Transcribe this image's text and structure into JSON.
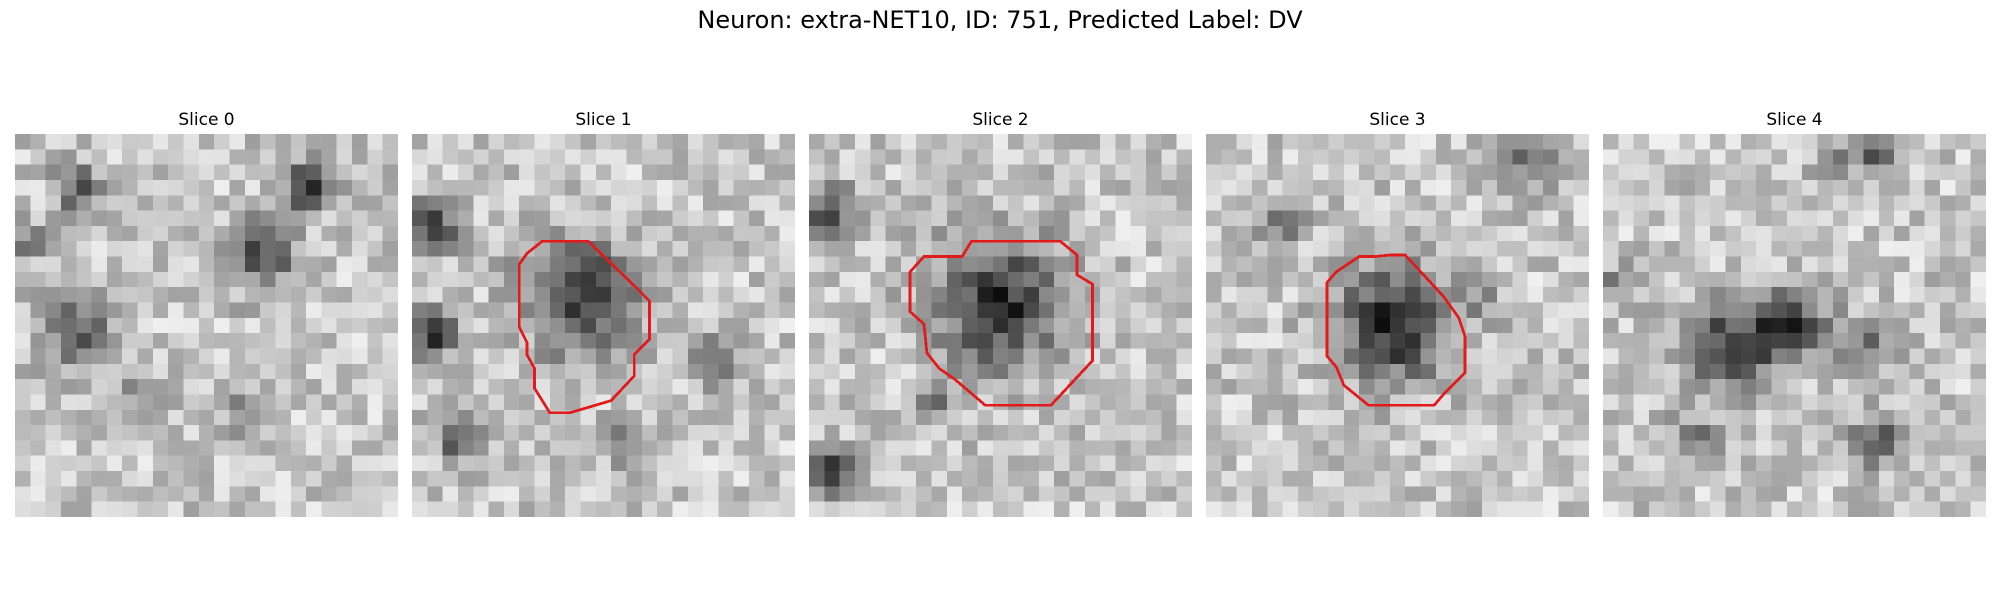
{
  "figure": {
    "title": "Neuron: extra-NET10, ID: 751, Predicted Label: DV"
  },
  "panels": [
    {
      "title": "Slice 0",
      "has_roi": false
    },
    {
      "title": "Slice 1",
      "has_roi": true
    },
    {
      "title": "Slice 2",
      "has_roi": true
    },
    {
      "title": "Slice 3",
      "has_roi": true
    },
    {
      "title": "Slice 4",
      "has_roi": false
    }
  ],
  "colors": {
    "roi_outline": "#e31a1c",
    "background": "#ffffff"
  }
}
